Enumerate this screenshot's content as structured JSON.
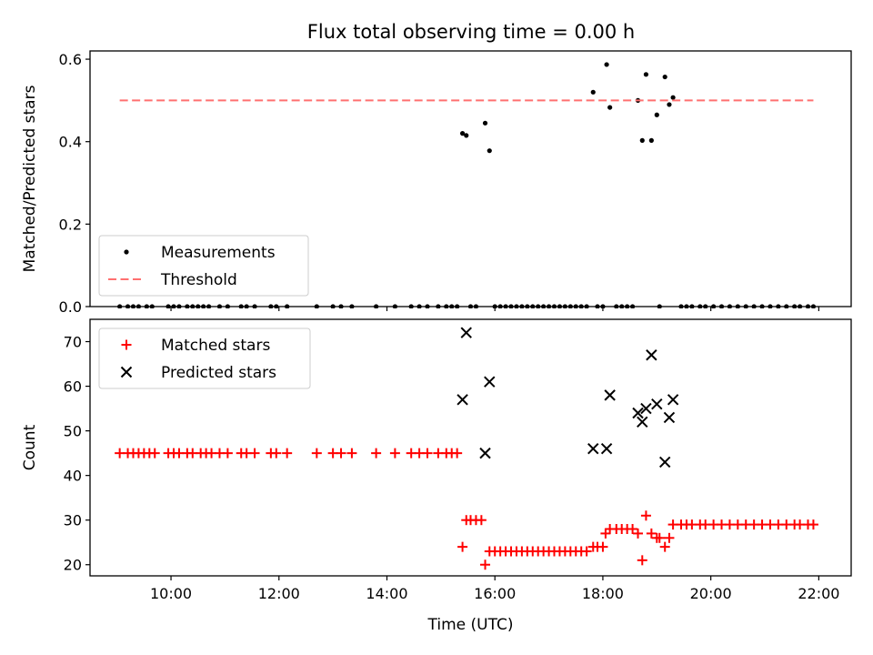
{
  "title": "Flux total observing time = 0.00 h",
  "chart_data": [
    {
      "type": "scatter",
      "ylabel": "Matched/Predicted stars",
      "xlim_hours": [
        8.5,
        22.6
      ],
      "ylim": [
        0,
        0.62
      ],
      "yticks": [
        0.0,
        0.2,
        0.4,
        0.6
      ],
      "yticklabels": [
        "0.0",
        "0.2",
        "0.4",
        "0.6"
      ],
      "legend": "bottom-left",
      "grid": false,
      "series": [
        {
          "name": "Measurements",
          "marker": "dot",
          "color": "#000000",
          "points": [
            [
              15.4,
              0.42
            ],
            [
              15.47,
              0.415
            ],
            [
              15.82,
              0.445
            ],
            [
              15.9,
              0.378
            ],
            [
              17.82,
              0.52
            ],
            [
              18.07,
              0.587
            ],
            [
              18.13,
              0.483
            ],
            [
              18.65,
              0.5
            ],
            [
              18.73,
              0.403
            ],
            [
              18.8,
              0.563
            ],
            [
              18.9,
              0.403
            ],
            [
              19.0,
              0.465
            ],
            [
              19.15,
              0.557
            ],
            [
              19.23,
              0.49
            ],
            [
              19.3,
              0.507
            ],
            [
              9.05,
              0
            ],
            [
              9.2,
              0
            ],
            [
              9.3,
              0
            ],
            [
              9.4,
              0
            ],
            [
              9.55,
              0
            ],
            [
              9.65,
              0
            ],
            [
              9.95,
              0
            ],
            [
              10.05,
              0
            ],
            [
              10.15,
              0
            ],
            [
              10.3,
              0
            ],
            [
              10.4,
              0
            ],
            [
              10.5,
              0
            ],
            [
              10.6,
              0
            ],
            [
              10.7,
              0
            ],
            [
              10.9,
              0
            ],
            [
              11.05,
              0
            ],
            [
              11.3,
              0
            ],
            [
              11.4,
              0
            ],
            [
              11.55,
              0
            ],
            [
              11.85,
              0
            ],
            [
              11.95,
              0
            ],
            [
              12.15,
              0
            ],
            [
              12.7,
              0
            ],
            [
              13.0,
              0
            ],
            [
              13.15,
              0
            ],
            [
              13.35,
              0
            ],
            [
              13.8,
              0
            ],
            [
              14.15,
              0
            ],
            [
              14.45,
              0
            ],
            [
              14.6,
              0
            ],
            [
              14.75,
              0
            ],
            [
              14.95,
              0
            ],
            [
              15.1,
              0
            ],
            [
              15.2,
              0
            ],
            [
              15.3,
              0
            ],
            [
              15.55,
              0
            ],
            [
              15.65,
              0
            ],
            [
              16.0,
              0
            ],
            [
              16.1,
              0
            ],
            [
              16.2,
              0
            ],
            [
              16.3,
              0
            ],
            [
              16.4,
              0
            ],
            [
              16.5,
              0
            ],
            [
              16.6,
              0
            ],
            [
              16.7,
              0
            ],
            [
              16.8,
              0
            ],
            [
              16.9,
              0
            ],
            [
              17.0,
              0
            ],
            [
              17.1,
              0
            ],
            [
              17.2,
              0
            ],
            [
              17.3,
              0
            ],
            [
              17.4,
              0
            ],
            [
              17.5,
              0
            ],
            [
              17.6,
              0
            ],
            [
              17.7,
              0
            ],
            [
              17.9,
              0
            ],
            [
              18.0,
              0
            ],
            [
              18.25,
              0
            ],
            [
              18.35,
              0
            ],
            [
              18.45,
              0
            ],
            [
              18.55,
              0
            ],
            [
              19.05,
              0
            ],
            [
              19.45,
              0
            ],
            [
              19.55,
              0
            ],
            [
              19.65,
              0
            ],
            [
              19.8,
              0
            ],
            [
              19.9,
              0
            ],
            [
              20.05,
              0
            ],
            [
              20.2,
              0
            ],
            [
              20.35,
              0
            ],
            [
              20.5,
              0
            ],
            [
              20.65,
              0
            ],
            [
              20.8,
              0
            ],
            [
              20.95,
              0
            ],
            [
              21.1,
              0
            ],
            [
              21.25,
              0
            ],
            [
              21.4,
              0
            ],
            [
              21.55,
              0
            ],
            [
              21.65,
              0
            ],
            [
              21.8,
              0
            ],
            [
              21.9,
              0
            ]
          ]
        },
        {
          "name": "Threshold",
          "marker": "dashed-line",
          "color": "#ff7070",
          "points": [
            [
              9.05,
              0.5
            ],
            [
              21.9,
              0.5
            ]
          ]
        }
      ]
    },
    {
      "type": "scatter",
      "ylabel": "Count",
      "xlabel": "Time (UTC)",
      "xlim_hours": [
        8.5,
        22.6
      ],
      "ylim": [
        17.5,
        75
      ],
      "yticks": [
        20,
        30,
        40,
        50,
        60,
        70
      ],
      "yticklabels": [
        "20",
        "30",
        "40",
        "50",
        "60",
        "70"
      ],
      "xticks_hours": [
        10,
        12,
        14,
        16,
        18,
        20,
        22
      ],
      "xticklabels": [
        "10:00",
        "12:00",
        "14:00",
        "16:00",
        "18:00",
        "20:00",
        "22:00"
      ],
      "legend": "top-left",
      "grid": false,
      "series": [
        {
          "name": "Matched stars",
          "marker": "plus",
          "color": "#ff0000",
          "points": [
            [
              9.05,
              45
            ],
            [
              9.2,
              45
            ],
            [
              9.3,
              45
            ],
            [
              9.4,
              45
            ],
            [
              9.5,
              45
            ],
            [
              9.6,
              45
            ],
            [
              9.7,
              45
            ],
            [
              9.95,
              45
            ],
            [
              10.05,
              45
            ],
            [
              10.15,
              45
            ],
            [
              10.3,
              45
            ],
            [
              10.4,
              45
            ],
            [
              10.55,
              45
            ],
            [
              10.65,
              45
            ],
            [
              10.75,
              45
            ],
            [
              10.9,
              45
            ],
            [
              11.05,
              45
            ],
            [
              11.3,
              45
            ],
            [
              11.4,
              45
            ],
            [
              11.55,
              45
            ],
            [
              11.85,
              45
            ],
            [
              11.95,
              45
            ],
            [
              12.15,
              45
            ],
            [
              12.7,
              45
            ],
            [
              13.0,
              45
            ],
            [
              13.15,
              45
            ],
            [
              13.35,
              45
            ],
            [
              13.8,
              45
            ],
            [
              14.15,
              45
            ],
            [
              14.45,
              45
            ],
            [
              14.6,
              45
            ],
            [
              14.75,
              45
            ],
            [
              14.95,
              45
            ],
            [
              15.1,
              45
            ],
            [
              15.2,
              45
            ],
            [
              15.3,
              45
            ],
            [
              15.4,
              24
            ],
            [
              15.47,
              30
            ],
            [
              15.55,
              30
            ],
            [
              15.65,
              30
            ],
            [
              15.75,
              30
            ],
            [
              15.82,
              20
            ],
            [
              15.9,
              23
            ],
            [
              16.0,
              23
            ],
            [
              16.1,
              23
            ],
            [
              16.2,
              23
            ],
            [
              16.3,
              23
            ],
            [
              16.4,
              23
            ],
            [
              16.5,
              23
            ],
            [
              16.6,
              23
            ],
            [
              16.7,
              23
            ],
            [
              16.8,
              23
            ],
            [
              16.9,
              23
            ],
            [
              17.0,
              23
            ],
            [
              17.1,
              23
            ],
            [
              17.2,
              23
            ],
            [
              17.3,
              23
            ],
            [
              17.4,
              23
            ],
            [
              17.5,
              23
            ],
            [
              17.6,
              23
            ],
            [
              17.7,
              23
            ],
            [
              17.82,
              24
            ],
            [
              17.9,
              24
            ],
            [
              18.0,
              24
            ],
            [
              18.05,
              27
            ],
            [
              18.13,
              28
            ],
            [
              18.25,
              28
            ],
            [
              18.35,
              28
            ],
            [
              18.45,
              28
            ],
            [
              18.55,
              28
            ],
            [
              18.65,
              27
            ],
            [
              18.73,
              21
            ],
            [
              18.8,
              31
            ],
            [
              18.9,
              27
            ],
            [
              19.0,
              26
            ],
            [
              19.05,
              26
            ],
            [
              19.15,
              24
            ],
            [
              19.23,
              26
            ],
            [
              19.3,
              29
            ],
            [
              19.45,
              29
            ],
            [
              19.55,
              29
            ],
            [
              19.65,
              29
            ],
            [
              19.8,
              29
            ],
            [
              19.9,
              29
            ],
            [
              20.05,
              29
            ],
            [
              20.2,
              29
            ],
            [
              20.35,
              29
            ],
            [
              20.5,
              29
            ],
            [
              20.65,
              29
            ],
            [
              20.8,
              29
            ],
            [
              20.95,
              29
            ],
            [
              21.1,
              29
            ],
            [
              21.25,
              29
            ],
            [
              21.4,
              29
            ],
            [
              21.55,
              29
            ],
            [
              21.65,
              29
            ],
            [
              21.8,
              29
            ],
            [
              21.9,
              29
            ]
          ]
        },
        {
          "name": "Predicted stars",
          "marker": "x",
          "color": "#000000",
          "points": [
            [
              15.4,
              57
            ],
            [
              15.47,
              72
            ],
            [
              15.82,
              45
            ],
            [
              15.9,
              61
            ],
            [
              17.82,
              46
            ],
            [
              18.07,
              46
            ],
            [
              18.13,
              58
            ],
            [
              18.65,
              54
            ],
            [
              18.73,
              52
            ],
            [
              18.8,
              55
            ],
            [
              18.9,
              67
            ],
            [
              19.0,
              56
            ],
            [
              19.15,
              43
            ],
            [
              19.23,
              53
            ],
            [
              19.3,
              57
            ]
          ]
        }
      ]
    }
  ]
}
